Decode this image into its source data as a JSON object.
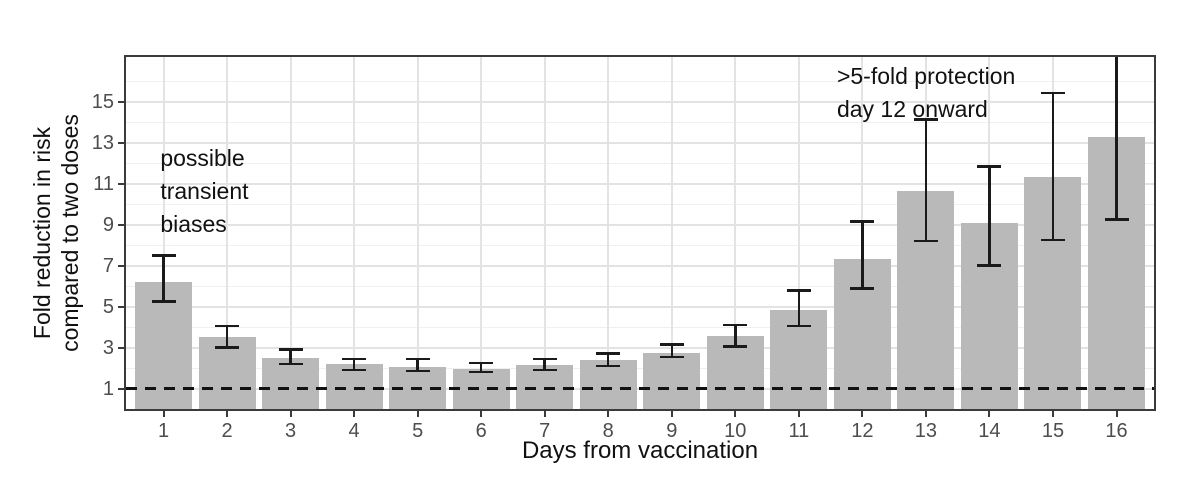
{
  "chart_data": {
    "type": "bar",
    "title": "",
    "xlabel": "Days from vaccination",
    "ylabel_lines": [
      "Fold reduction in risk",
      "compared to two doses"
    ],
    "categories": [
      1,
      2,
      3,
      4,
      5,
      6,
      7,
      8,
      9,
      10,
      11,
      12,
      13,
      14,
      15,
      16
    ],
    "x_tick_labels": [
      "1",
      "2",
      "3",
      "4",
      "5",
      "6",
      "7",
      "8",
      "9",
      "10",
      "11",
      "12",
      "13",
      "14",
      "15",
      "16"
    ],
    "values": [
      6.2,
      3.5,
      2.5,
      2.2,
      2.05,
      1.95,
      2.15,
      2.4,
      2.75,
      3.55,
      4.85,
      7.35,
      10.65,
      9.1,
      11.35,
      13.3
    ],
    "ci_low": [
      5.25,
      3.0,
      2.2,
      1.9,
      1.85,
      1.8,
      1.9,
      2.1,
      2.55,
      3.05,
      4.05,
      5.9,
      8.2,
      7.0,
      8.25,
      9.25
    ],
    "ci_high": [
      7.5,
      4.05,
      2.9,
      2.45,
      2.45,
      2.25,
      2.45,
      2.7,
      3.15,
      4.1,
      5.8,
      9.15,
      14.15,
      11.85,
      15.45,
      17.5
    ],
    "ci_high_clipped": [
      false,
      false,
      false,
      false,
      false,
      false,
      false,
      false,
      false,
      false,
      false,
      false,
      false,
      false,
      false,
      true
    ],
    "y_ticks": [
      1,
      3,
      5,
      7,
      9,
      11,
      13,
      15
    ],
    "y_tick_labels": [
      "1",
      "3",
      "5",
      "7",
      "9",
      "11",
      "13",
      "15"
    ],
    "y_minor_gridlines": [
      2,
      4,
      6,
      8,
      10,
      12,
      14,
      16
    ],
    "ylim": [
      0,
      17.2
    ],
    "reference_line_y": 1,
    "grid": true,
    "legend": "none",
    "annotations": [
      {
        "lines": [
          "possible",
          "transient",
          "biases"
        ],
        "anchor_day": 0.95,
        "anchor_value_top": 13.05
      },
      {
        "lines": [
          ">5-fold protection",
          "day 12 onward"
        ],
        "anchor_day": 11.6,
        "anchor_value_top": 17.05
      }
    ]
  },
  "colors": {
    "bar_fill": "#b9b9b9",
    "error_bar": "#1a1a1a",
    "reference_line": "#111111",
    "grid_major": "#e3e3e3",
    "grid_minor": "#f0f0f0",
    "panel_border": "#3b3b3b",
    "tick_mark": "#3b3b3b",
    "tick_label": "#4d4d4d",
    "text": "#111111",
    "background": "#ffffff"
  }
}
